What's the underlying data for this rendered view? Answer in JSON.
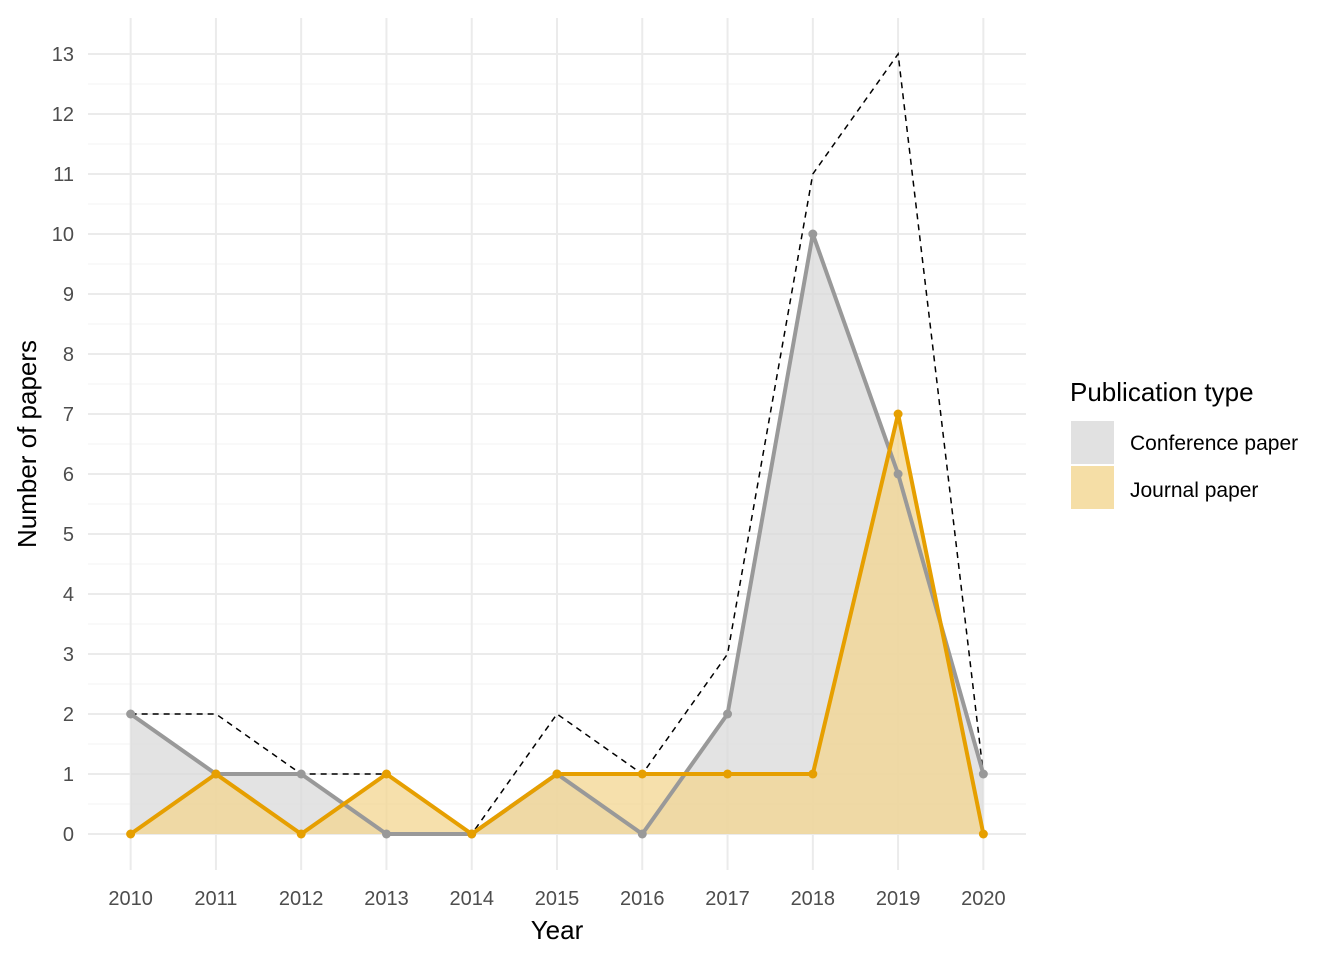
{
  "chart_data": {
    "type": "area",
    "xlabel": "Year",
    "ylabel": "Number of papers",
    "x": [
      2010,
      2011,
      2012,
      2013,
      2014,
      2015,
      2016,
      2017,
      2018,
      2019,
      2020
    ],
    "x_tick_labels": [
      "2010",
      "2011",
      "2012",
      "2013",
      "2014",
      "2015",
      "2016",
      "2017",
      "2018",
      "2019",
      "2020"
    ],
    "y_tick_labels": [
      "0",
      "1",
      "2",
      "3",
      "4",
      "5",
      "6",
      "7",
      "8",
      "9",
      "10",
      "11",
      "12",
      "13"
    ],
    "ylim": [
      -0.6,
      13.6
    ],
    "grid": true,
    "series": [
      {
        "name": "Conference paper",
        "values": [
          2,
          1,
          1,
          0,
          0,
          1,
          0,
          2,
          10,
          6,
          1
        ],
        "line_color": "#999999",
        "fill_color": "#d9d9d9"
      },
      {
        "name": "Journal paper",
        "values": [
          0,
          1,
          0,
          1,
          0,
          1,
          1,
          1,
          1,
          7,
          0
        ],
        "line_color": "#E69F00",
        "fill_color": "#f3d690"
      }
    ],
    "total": {
      "values": [
        2,
        2,
        1,
        1,
        0,
        2,
        1,
        3,
        11,
        13,
        1
      ],
      "style": "dashed",
      "color": "#000000"
    },
    "legend": {
      "title": "Publication type",
      "position": "right"
    }
  }
}
